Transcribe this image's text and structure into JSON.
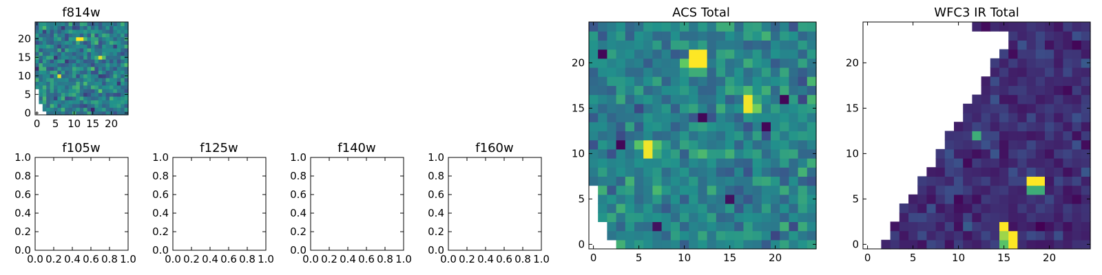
{
  "colormap": {
    "name": "viridis",
    "stops": [
      "#440154",
      "#3b528b",
      "#21918c",
      "#5ec962",
      "#fde725"
    ]
  },
  "chart_data": [
    {
      "id": "f814w",
      "type": "heatmap",
      "title": "f814w",
      "grid_size": 25,
      "xlim": [
        -0.5,
        24.5
      ],
      "ylim": [
        -0.5,
        24.5
      ],
      "xticks": [
        0,
        5,
        10,
        15,
        20
      ],
      "yticks": [
        0,
        5,
        10,
        15,
        20
      ],
      "seed": 11,
      "base": 0.42,
      "spread": 0.34,
      "hotspots": [
        {
          "x": 11,
          "y": 20,
          "value": 1.0
        },
        {
          "x": 12,
          "y": 20,
          "value": 1.0
        },
        {
          "x": 17,
          "y": 15,
          "value": 0.95
        },
        {
          "x": 18,
          "y": 15,
          "value": 0.7
        },
        {
          "x": 6,
          "y": 10,
          "value": 0.95
        },
        {
          "x": 5,
          "y": 11,
          "value": 0.6
        }
      ],
      "mask": "acs"
    },
    {
      "id": "f105w",
      "type": "empty",
      "title": "f105w",
      "xlim": [
        0,
        1
      ],
      "ylim": [
        0,
        1
      ],
      "xticks": [
        "0.0",
        "0.2",
        "0.4",
        "0.6",
        "0.8",
        "1.0"
      ],
      "yticks": [
        "0.0",
        "0.2",
        "0.4",
        "0.6",
        "0.8",
        "1.0"
      ]
    },
    {
      "id": "f125w",
      "type": "empty",
      "title": "f125w",
      "xlim": [
        0,
        1
      ],
      "ylim": [
        0,
        1
      ],
      "xticks": [
        "0.0",
        "0.2",
        "0.4",
        "0.6",
        "0.8",
        "1.0"
      ],
      "yticks": [
        "0.0",
        "0.2",
        "0.4",
        "0.6",
        "0.8",
        "1.0"
      ]
    },
    {
      "id": "f140w",
      "type": "empty",
      "title": "f140w",
      "xlim": [
        0,
        1
      ],
      "ylim": [
        0,
        1
      ],
      "xticks": [
        "0.0",
        "0.2",
        "0.4",
        "0.6",
        "0.8",
        "1.0"
      ],
      "yticks": [
        "0.0",
        "0.2",
        "0.4",
        "0.6",
        "0.8",
        "1.0"
      ]
    },
    {
      "id": "f160w",
      "type": "empty",
      "title": "f160w",
      "xlim": [
        0,
        1
      ],
      "ylim": [
        0,
        1
      ],
      "xticks": [
        "0.0",
        "0.2",
        "0.4",
        "0.6",
        "0.8",
        "1.0"
      ],
      "yticks": [
        "0.0",
        "0.2",
        "0.4",
        "0.6",
        "0.8",
        "1.0"
      ]
    },
    {
      "id": "acs-total",
      "type": "heatmap",
      "title": "ACS Total",
      "grid_size": 25,
      "xlim": [
        -0.5,
        24.5
      ],
      "ylim": [
        -0.5,
        24.5
      ],
      "xticks": [
        0,
        5,
        10,
        15,
        20
      ],
      "yticks": [
        0,
        5,
        10,
        15,
        20
      ],
      "seed": 7,
      "base": 0.45,
      "spread": 0.28,
      "hotspots": [
        {
          "x": 11,
          "y": 21,
          "value": 1.0
        },
        {
          "x": 12,
          "y": 21,
          "value": 1.0
        },
        {
          "x": 11,
          "y": 20,
          "value": 1.0
        },
        {
          "x": 12,
          "y": 20,
          "value": 1.0
        },
        {
          "x": 10,
          "y": 20,
          "value": 0.75
        },
        {
          "x": 11,
          "y": 19,
          "value": 0.62
        },
        {
          "x": 12,
          "y": 19,
          "value": 0.62
        },
        {
          "x": 17,
          "y": 16,
          "value": 0.98
        },
        {
          "x": 17,
          "y": 15,
          "value": 0.98
        },
        {
          "x": 18,
          "y": 15,
          "value": 0.78
        },
        {
          "x": 18,
          "y": 16,
          "value": 0.6
        },
        {
          "x": 6,
          "y": 11,
          "value": 0.98
        },
        {
          "x": 6,
          "y": 10,
          "value": 0.98
        },
        {
          "x": 5,
          "y": 11,
          "value": 0.72
        },
        {
          "x": 7,
          "y": 11,
          "value": 0.7
        },
        {
          "x": 3,
          "y": 11,
          "value": 0.02
        },
        {
          "x": 1,
          "y": 21,
          "value": 0.02
        },
        {
          "x": 12,
          "y": 14,
          "value": 0.02
        },
        {
          "x": 19,
          "y": 13,
          "value": 0.02
        },
        {
          "x": 21,
          "y": 16,
          "value": 0.02
        },
        {
          "x": 7,
          "y": 2,
          "value": 0.05
        },
        {
          "x": 15,
          "y": 5,
          "value": 0.05
        }
      ],
      "mask": "acs"
    },
    {
      "id": "wfc3-ir-total",
      "type": "heatmap",
      "title": "WFC3 IR Total",
      "grid_size": 25,
      "xlim": [
        -0.5,
        24.5
      ],
      "ylim": [
        -0.5,
        24.5
      ],
      "xticks": [
        0,
        5,
        10,
        15,
        20
      ],
      "yticks": [
        0,
        5,
        10,
        15,
        20
      ],
      "seed": 23,
      "base": 0.14,
      "spread": 0.16,
      "hotspots": [
        {
          "x": 18,
          "y": 7,
          "value": 1.0
        },
        {
          "x": 19,
          "y": 7,
          "value": 1.0
        },
        {
          "x": 18,
          "y": 6,
          "value": 0.62
        },
        {
          "x": 19,
          "y": 6,
          "value": 0.62
        },
        {
          "x": 15,
          "y": 2,
          "value": 1.0
        },
        {
          "x": 15,
          "y": 1,
          "value": 0.85
        },
        {
          "x": 16,
          "y": 1,
          "value": 1.0
        },
        {
          "x": 16,
          "y": 0,
          "value": 1.0
        },
        {
          "x": 15,
          "y": 0,
          "value": 0.72
        },
        {
          "x": 12,
          "y": 12,
          "value": 0.62
        }
      ],
      "mask": "wfc3"
    }
  ]
}
